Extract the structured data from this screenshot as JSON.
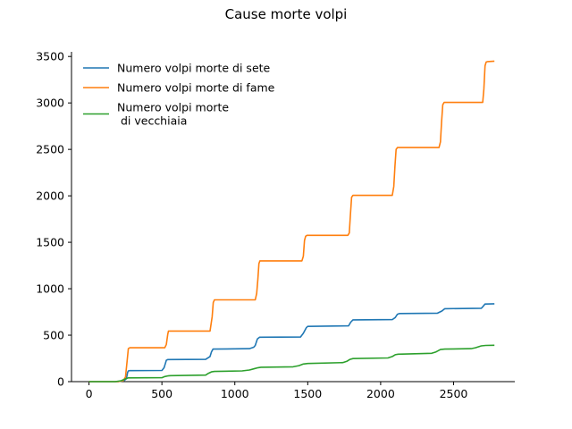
{
  "chart_data": {
    "type": "line",
    "title": "Cause morte volpi",
    "xlabel": "",
    "ylabel": "",
    "xlim": [
      -120,
      2920
    ],
    "ylim": [
      0,
      3550
    ],
    "xticks": [
      0,
      500,
      1000,
      1500,
      2000,
      2500
    ],
    "yticks": [
      0,
      500,
      1000,
      1500,
      2000,
      2500,
      3000,
      3500
    ],
    "grid": false,
    "legend_position": "top-left",
    "series": [
      {
        "name": "Numero volpi morte di sete",
        "color": "#1f77b4",
        "x": [
          0,
          200,
          240,
          255,
          260,
          265,
          270,
          280,
          500,
          515,
          525,
          530,
          540,
          800,
          830,
          840,
          850,
          1100,
          1130,
          1140,
          1155,
          1170,
          1450,
          1470,
          1490,
          1500,
          1780,
          1795,
          1810,
          2080,
          2100,
          2115,
          2130,
          2390,
          2420,
          2440,
          2690,
          2700,
          2715,
          2780
        ],
        "y": [
          0,
          0,
          10,
          30,
          60,
          100,
          115,
          118,
          120,
          150,
          200,
          230,
          238,
          240,
          270,
          320,
          350,
          355,
          370,
          390,
          460,
          478,
          480,
          520,
          580,
          595,
          600,
          640,
          665,
          668,
          690,
          725,
          733,
          737,
          760,
          785,
          790,
          805,
          835,
          838
        ]
      },
      {
        "name": "Numero volpi morte di fame",
        "color": "#ff7f0e",
        "x": [
          0,
          200,
          235,
          250,
          260,
          270,
          280,
          520,
          530,
          540,
          545,
          830,
          845,
          852,
          860,
          1140,
          1150,
          1158,
          1165,
          1172,
          1180,
          1460,
          1470,
          1478,
          1486,
          1495,
          1775,
          1785,
          1793,
          1801,
          1810,
          2080,
          2090,
          2098,
          2106,
          2115,
          2400,
          2410,
          2418,
          2426,
          2435,
          2700,
          2708,
          2716,
          2724,
          2734,
          2780
        ],
        "y": [
          0,
          0,
          10,
          50,
          200,
          355,
          365,
          365,
          400,
          510,
          545,
          545,
          700,
          850,
          880,
          880,
          950,
          1100,
          1270,
          1300,
          1300,
          1300,
          1350,
          1520,
          1565,
          1575,
          1575,
          1600,
          1800,
          1985,
          2005,
          2005,
          2100,
          2320,
          2500,
          2520,
          2520,
          2580,
          2800,
          2980,
          3005,
          3005,
          3150,
          3400,
          3440,
          3445,
          3450
        ]
      },
      {
        "name": "Numero volpi morte\n di vecchiaia",
        "color": "#2ca02c",
        "x": [
          0,
          180,
          220,
          250,
          270,
          500,
          520,
          540,
          560,
          800,
          820,
          840,
          860,
          1050,
          1100,
          1130,
          1160,
          1180,
          1400,
          1440,
          1470,
          1500,
          1740,
          1770,
          1790,
          1810,
          2050,
          2080,
          2100,
          2120,
          2350,
          2380,
          2410,
          2440,
          2620,
          2650,
          2690,
          2720,
          2780
        ],
        "y": [
          0,
          0,
          10,
          30,
          40,
          42,
          55,
          62,
          64,
          70,
          90,
          105,
          110,
          115,
          125,
          138,
          150,
          155,
          160,
          172,
          190,
          195,
          205,
          220,
          240,
          248,
          255,
          270,
          290,
          295,
          305,
          320,
          345,
          350,
          355,
          365,
          385,
          390,
          392
        ]
      }
    ]
  }
}
